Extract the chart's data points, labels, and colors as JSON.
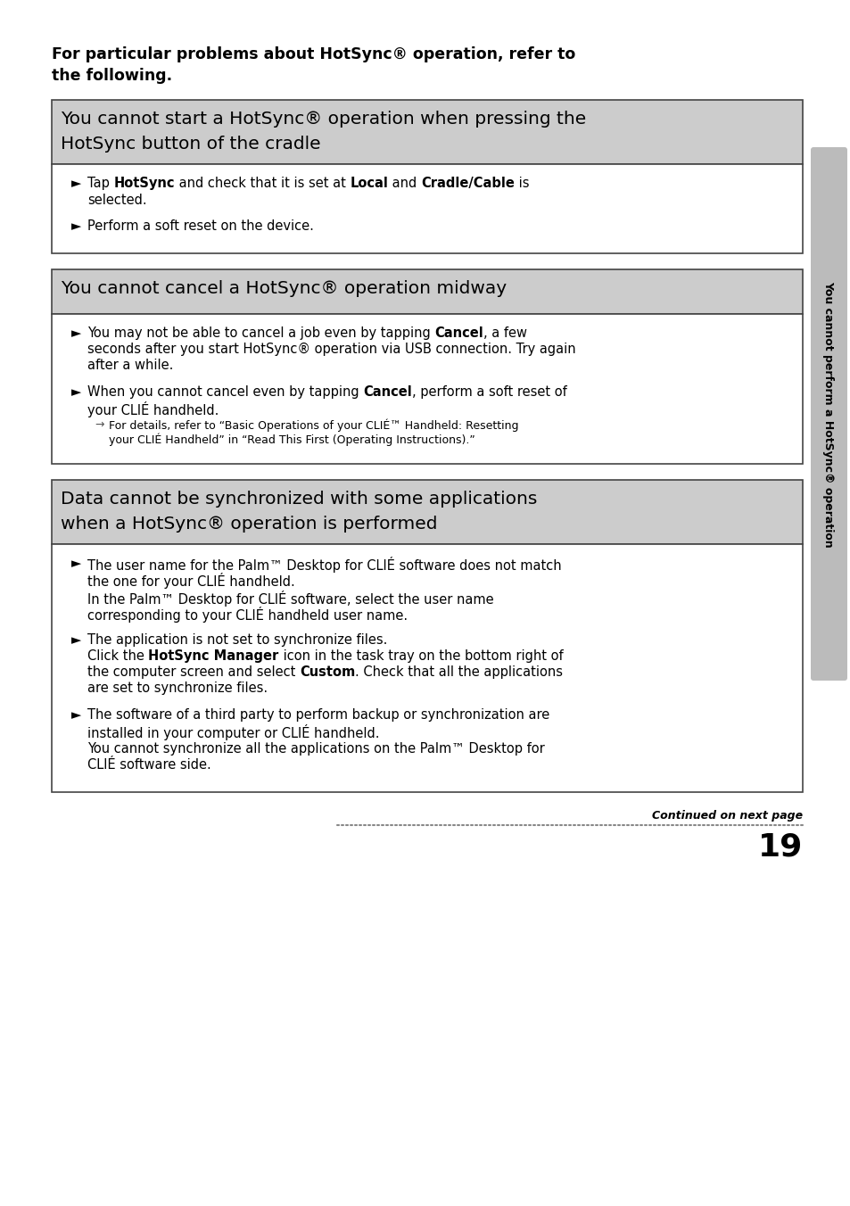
{
  "bg_color": "#ffffff",
  "page_number": "19",
  "header_bg": "#cccccc",
  "box_border": "#444444",
  "continued_text": "Continued on next page",
  "intro_line1": "For particular problems about HotSync® operation, refer to",
  "intro_line2": "the following.",
  "s1_header1": "You cannot start a HotSync® operation when pressing the",
  "s1_header2": "HotSync button of the cradle",
  "s2_header1": "You cannot cancel a HotSync® operation midway",
  "s3_header1": "Data cannot be synchronized with some applications",
  "s3_header2": "when a HotSync® operation is performed",
  "sidebar_text": "You cannot perform a HotSync® operation",
  "body_fontsize": 10.5,
  "header_fontsize": 14.5,
  "intro_fontsize": 12.5
}
